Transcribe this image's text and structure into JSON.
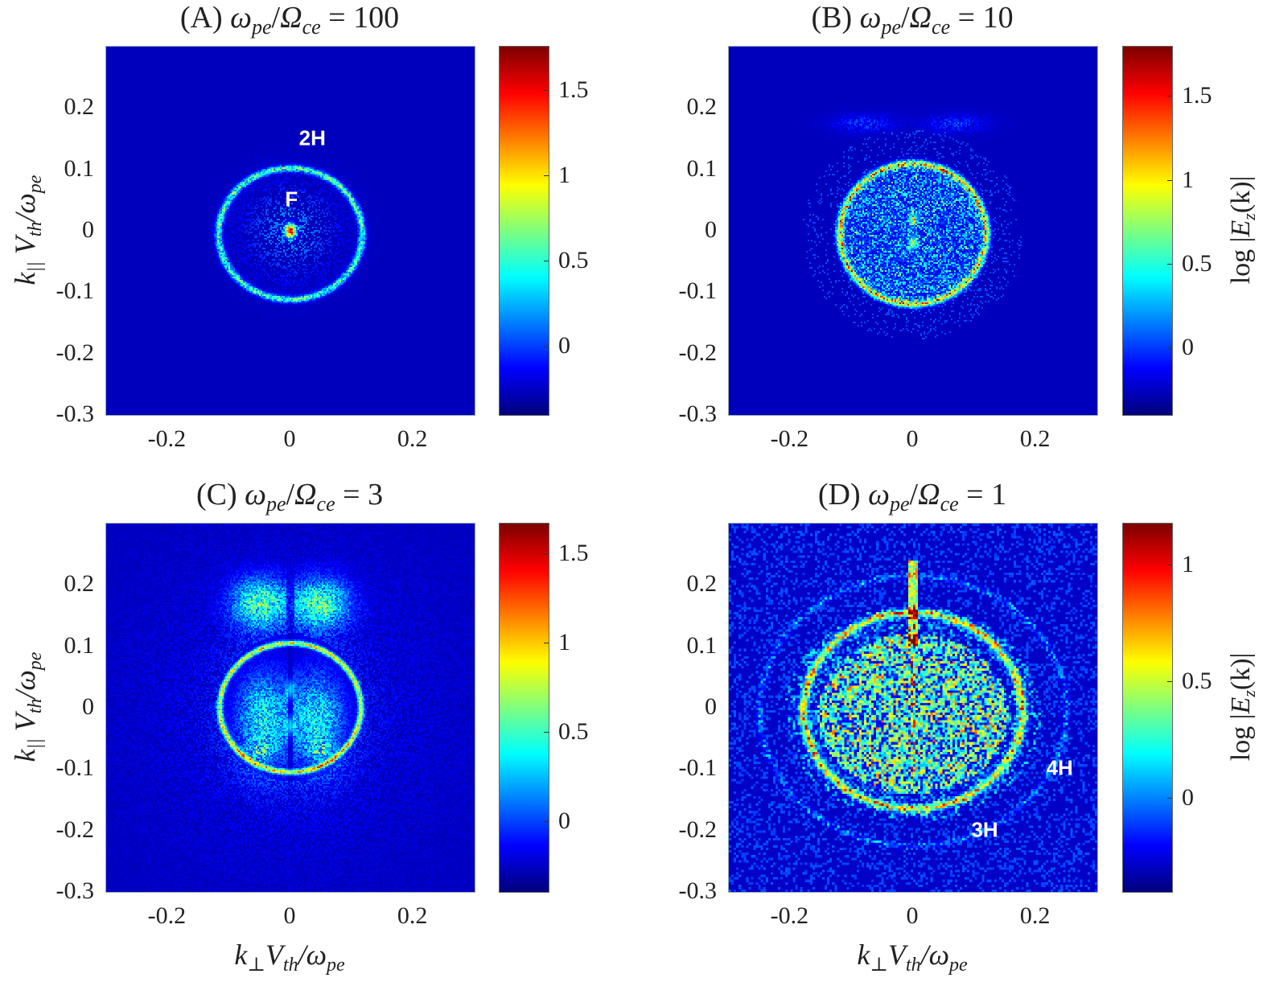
{
  "chart_data": [
    {
      "type": "heatmap",
      "panel_label": "(A)",
      "title_ratio": "100",
      "xlim": [
        -0.3,
        0.3
      ],
      "ylim": [
        -0.3,
        0.3
      ],
      "xticks": [
        "-0.2",
        "0",
        "0.2"
      ],
      "yticks": [
        "0.2",
        "0.1",
        "0",
        "-0.1",
        "-0.2",
        "-0.3"
      ],
      "clim": [
        -0.4,
        1.76
      ],
      "cticks": [
        "1.5",
        "1",
        "0.5",
        "0"
      ],
      "colormap": "jet",
      "ylabel": true,
      "xlabel": false,
      "colorbar_label": false,
      "annotations": [
        {
          "text": "2H",
          "x": 0.037,
          "y": 0.15
        },
        {
          "text": "F",
          "x": 0.003,
          "y": 0.05
        }
      ]
    },
    {
      "type": "heatmap",
      "panel_label": "(B)",
      "title_ratio": "10",
      "xlim": [
        -0.3,
        0.3
      ],
      "ylim": [
        -0.3,
        0.3
      ],
      "xticks": [
        "-0.2",
        "0",
        "0.2"
      ],
      "yticks": [
        "0.2",
        "0.1",
        "0",
        "-0.1",
        "-0.2",
        "-0.3"
      ],
      "clim": [
        -0.4,
        1.8
      ],
      "cticks": [
        "1.5",
        "1",
        "0.5",
        "0"
      ],
      "colormap": "jet",
      "ylabel": false,
      "xlabel": false,
      "colorbar_label": true,
      "annotations": []
    },
    {
      "type": "heatmap",
      "panel_label": "(C)",
      "title_ratio": "3",
      "xlim": [
        -0.3,
        0.3
      ],
      "ylim": [
        -0.3,
        0.3
      ],
      "xticks": [
        "-0.2",
        "0",
        "0.2"
      ],
      "yticks": [
        "0.2",
        "0.1",
        "0",
        "-0.1",
        "-0.2",
        "-0.3"
      ],
      "clim": [
        -0.39,
        1.67
      ],
      "cticks": [
        "1.5",
        "1",
        "0.5",
        "0"
      ],
      "colormap": "jet",
      "ylabel": true,
      "xlabel": true,
      "colorbar_label": false,
      "annotations": []
    },
    {
      "type": "heatmap",
      "panel_label": "(D)",
      "title_ratio": "1",
      "xlim": [
        -0.3,
        0.3
      ],
      "ylim": [
        -0.3,
        0.3
      ],
      "xticks": [
        "-0.2",
        "0",
        "0.2"
      ],
      "yticks": [
        "0.2",
        "0.1",
        "0",
        "-0.1",
        "-0.2",
        "-0.3"
      ],
      "clim": [
        -0.4,
        1.18
      ],
      "cticks": [
        "1",
        "0.5",
        "0"
      ],
      "colormap": "jet",
      "ylabel": false,
      "xlabel": true,
      "colorbar_label": true,
      "annotations": [
        {
          "text": "4H",
          "x": 0.24,
          "y": -0.1
        },
        {
          "text": "3H",
          "x": 0.118,
          "y": -0.2
        }
      ]
    }
  ],
  "labels": {
    "omega": "ω",
    "pe": "pe",
    "Omega": "Ω",
    "ce": "ce",
    "equals": " = ",
    "ylabel_k": "k",
    "ylabel_sub": "||",
    "ylabel_rest": " V",
    "ylabel_th": "th",
    "ylabel_tail": "/ω",
    "ylabel_pe": "pe",
    "xlabel_k": "k",
    "xlabel_sub": "⊥",
    "xlabel_rest": "V",
    "xlabel_th": "th",
    "xlabel_tail": "/ω",
    "xlabel_pe": "pe",
    "clabel_log": "log |",
    "clabel_E": "E",
    "clabel_z": "z",
    "clabel_rest": "(k)|"
  }
}
